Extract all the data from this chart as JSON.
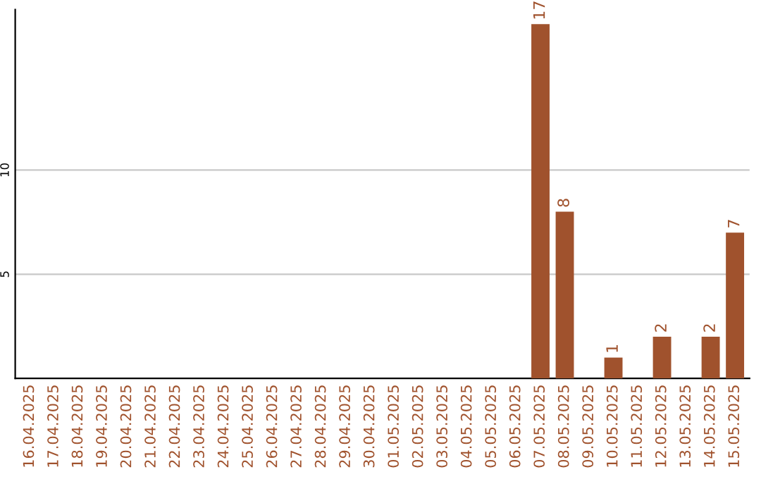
{
  "chart_data": {
    "type": "bar",
    "categories": [
      "16.04.2025",
      "17.04.2025",
      "18.04.2025",
      "19.04.2025",
      "20.04.2025",
      "21.04.2025",
      "22.04.2025",
      "23.04.2025",
      "24.04.2025",
      "25.04.2025",
      "26.04.2025",
      "27.04.2025",
      "28.04.2025",
      "29.04.2025",
      "30.04.2025",
      "01.05.2025",
      "02.05.2025",
      "03.05.2025",
      "04.05.2025",
      "05.05.2025",
      "06.05.2025",
      "07.05.2025",
      "08.05.2025",
      "09.05.2025",
      "10.05.2025",
      "11.05.2025",
      "12.05.2025",
      "13.05.2025",
      "14.05.2025",
      "15.05.2025"
    ],
    "values": [
      0,
      0,
      0,
      0,
      0,
      0,
      0,
      0,
      0,
      0,
      0,
      0,
      0,
      0,
      0,
      0,
      0,
      0,
      0,
      0,
      0,
      17,
      8,
      0,
      1,
      0,
      2,
      0,
      2,
      7
    ],
    "value_labels": [
      null,
      null,
      null,
      null,
      null,
      null,
      null,
      null,
      null,
      null,
      null,
      null,
      null,
      null,
      null,
      null,
      null,
      null,
      null,
      null,
      null,
      "17",
      "8",
      null,
      "1",
      null,
      "2",
      null,
      "2",
      "7"
    ],
    "color": "#a0522d",
    "ylim": [
      0,
      17.7
    ],
    "yticks": [
      5,
      10
    ],
    "grid": "y"
  }
}
